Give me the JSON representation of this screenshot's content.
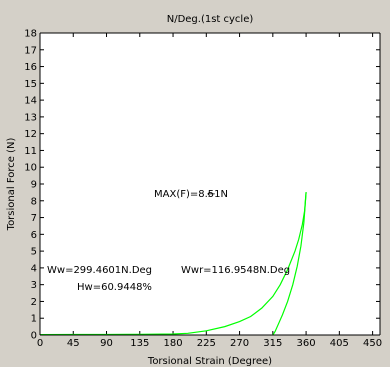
{
  "chart_data": {
    "type": "line",
    "title": "N/Deg.(1st cycle)",
    "xlabel": "Torsional Strain (Degree)",
    "ylabel": "Torsional Force (N)",
    "xlim": [
      0,
      460
    ],
    "ylim": [
      0,
      18
    ],
    "xticks": [
      "0",
      "45",
      "90",
      "135",
      "180",
      "225",
      "270",
      "315",
      "360",
      "405",
      "450"
    ],
    "yticks": [
      "0",
      "1",
      "2",
      "3",
      "4",
      "5",
      "6",
      "7",
      "8",
      "9",
      "10",
      "11",
      "12",
      "13",
      "14",
      "15",
      "16",
      "17",
      "18"
    ],
    "grid": false,
    "legend": "none",
    "colors": {
      "plot_background": "#ffffff",
      "figure_background": "#d4d0c8",
      "series": "#00ff00",
      "axes": "#000000",
      "text": "#000000"
    },
    "series": [
      {
        "segment": "loading",
        "x": [
          0,
          45,
          90,
          135,
          180,
          200,
          225,
          250,
          270,
          285,
          300,
          315,
          325,
          335,
          345,
          350,
          355,
          358,
          360
        ],
        "y": [
          0.02,
          0.03,
          0.03,
          0.04,
          0.06,
          0.1,
          0.25,
          0.5,
          0.8,
          1.1,
          1.6,
          2.3,
          3.0,
          3.9,
          5.0,
          5.7,
          6.6,
          7.4,
          8.51
        ]
      },
      {
        "segment": "unloading",
        "x": [
          360,
          357,
          353,
          348,
          342,
          335,
          328,
          322,
          318,
          315
        ],
        "y": [
          8.51,
          6.7,
          5.3,
          4.1,
          3.0,
          2.0,
          1.2,
          0.6,
          0.2,
          0.0
        ]
      }
    ],
    "annotations": {
      "max_force": "MAX(F)=8.51N",
      "max_arrow": "←",
      "ww": "Ww=299.4601N.Deg",
      "wwr": "Wwr=116.9548N.Deg",
      "hw": "Hw=60.9448%"
    }
  }
}
